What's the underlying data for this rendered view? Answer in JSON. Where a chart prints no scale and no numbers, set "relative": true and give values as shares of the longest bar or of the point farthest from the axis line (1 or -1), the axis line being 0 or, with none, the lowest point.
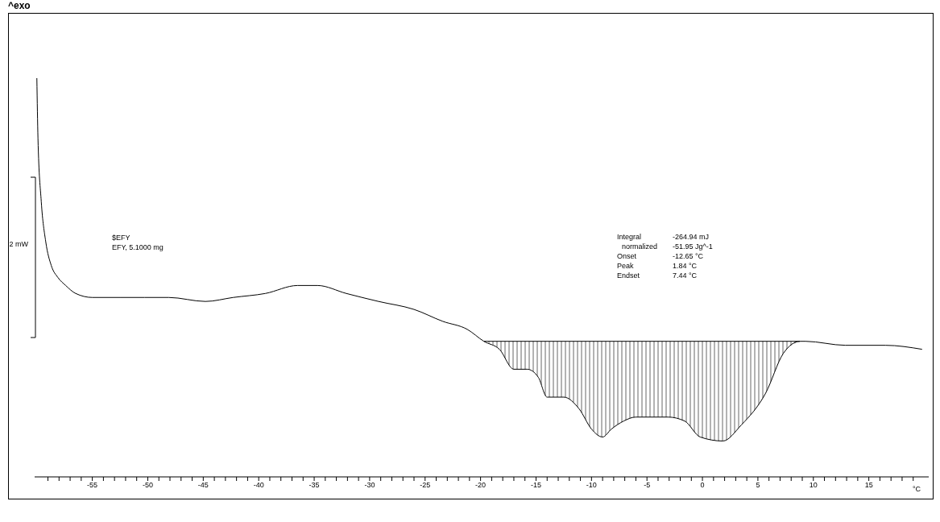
{
  "chart_data": {
    "type": "line",
    "relative": true,
    "xlabel": "°C",
    "ylabel": "2 mW",
    "xlim": [
      -60.2,
      20.4
    ],
    "xticks": [
      {
        "value": -59,
        "label": null
      },
      {
        "value": -58,
        "label": null
      },
      {
        "value": -57,
        "label": null
      },
      {
        "value": -56,
        "label": null
      },
      -55,
      {
        "value": -54,
        "label": null
      },
      {
        "value": -53,
        "label": null
      },
      {
        "value": -52,
        "label": null
      },
      {
        "value": -51,
        "label": null
      },
      -50,
      {
        "value": -49,
        "label": null
      },
      {
        "value": -48,
        "label": null
      },
      {
        "value": -47,
        "label": null
      },
      {
        "value": -46,
        "label": null
      },
      -45,
      {
        "value": -44,
        "label": null
      },
      {
        "value": -43,
        "label": null
      },
      {
        "value": -42,
        "label": null
      },
      {
        "value": -41,
        "label": null
      },
      -40,
      {
        "value": -39,
        "label": null
      },
      {
        "value": -38,
        "label": null
      },
      {
        "value": -37,
        "label": null
      },
      {
        "value": -36,
        "label": null
      },
      -35,
      {
        "value": -34,
        "label": null
      },
      {
        "value": -33,
        "label": null
      },
      {
        "value": -32,
        "label": null
      },
      {
        "value": -31,
        "label": null
      },
      -30,
      {
        "value": -29,
        "label": null
      },
      {
        "value": -28,
        "label": null
      },
      {
        "value": -27,
        "label": null
      },
      {
        "value": -26,
        "label": null
      },
      -25,
      {
        "value": -24,
        "label": null
      },
      {
        "value": -23,
        "label": null
      },
      {
        "value": -22,
        "label": null
      },
      {
        "value": -21,
        "label": null
      },
      -20,
      {
        "value": -19,
        "label": null
      },
      {
        "value": -18,
        "label": null
      },
      {
        "value": -17,
        "label": null
      },
      {
        "value": -16,
        "label": null
      },
      -15,
      {
        "value": -14,
        "label": null
      },
      {
        "value": -13,
        "label": null
      },
      {
        "value": -12,
        "label": null
      },
      {
        "value": -11,
        "label": null
      },
      -10,
      {
        "value": -9,
        "label": null
      },
      {
        "value": -8,
        "label": null
      },
      {
        "value": -7,
        "label": null
      },
      {
        "value": -6,
        "label": null
      },
      -5,
      {
        "value": -4,
        "label": null
      },
      {
        "value": -3,
        "label": null
      },
      {
        "value": -2,
        "label": null
      },
      {
        "value": -1,
        "label": null
      },
      0,
      {
        "value": 1,
        "label": null
      },
      {
        "value": 2,
        "label": null
      },
      {
        "value": 3,
        "label": null
      },
      {
        "value": 4,
        "label": null
      },
      5,
      {
        "value": 6,
        "label": null
      },
      {
        "value": 7,
        "label": null
      },
      {
        "value": 8,
        "label": null
      },
      {
        "value": 9,
        "label": null
      },
      10,
      {
        "value": 11,
        "label": null
      },
      {
        "value": 12,
        "label": null
      },
      {
        "value": 13,
        "label": null
      },
      {
        "value": 14,
        "label": null
      },
      15,
      {
        "value": 16,
        "label": null
      },
      {
        "value": 17,
        "label": null
      },
      {
        "value": 18,
        "label": null
      },
      {
        "value": 19,
        "label": null
      }
    ],
    "x": [
      -60.0,
      -59.9,
      -59.6,
      -59.2,
      -58.7,
      -58.1,
      -57.4,
      -56.5,
      -55.0,
      -52.5,
      -50.3,
      -48.1,
      -44.8,
      -42.3,
      -39.4,
      -36.5,
      -34.7,
      -32.1,
      -29.2,
      -26.0,
      -23.4,
      -21.2,
      -19.7,
      -18.3,
      -17.0,
      -15.8,
      -14.8,
      -14.0,
      -12.5,
      -11.1,
      -10.0,
      -9.0,
      -8.2,
      -7.1,
      -6.0,
      -3.1,
      -1.6,
      -0.2,
      1.84,
      3.5,
      5.7,
      7.3,
      8.8,
      9.3,
      12.9,
      16.5,
      19.8
    ],
    "series": [
      {
        "color": "#000000",
        "values": [
          1.0,
          0.85,
          0.69,
          0.59,
          0.53,
          0.5,
          0.48,
          0.46,
          0.45,
          0.45,
          0.45,
          0.45,
          0.44,
          0.45,
          0.46,
          0.48,
          0.48,
          0.46,
          0.44,
          0.42,
          0.39,
          0.37,
          0.34,
          0.32,
          0.27,
          0.27,
          0.25,
          0.2,
          0.2,
          0.17,
          0.12,
          0.1,
          0.12,
          0.14,
          0.15,
          0.15,
          0.14,
          0.1,
          0.09,
          0.13,
          0.21,
          0.31,
          0.34,
          0.34,
          0.33,
          0.33,
          0.32
        ],
        "lower": [
          null,
          null,
          null,
          null,
          null,
          null,
          null,
          null,
          null,
          null,
          null,
          null,
          null,
          null,
          null,
          null,
          null,
          null,
          null,
          null,
          null,
          null,
          0.34,
          0.32,
          0.27,
          0.27,
          0.25,
          0.2,
          0.2,
          0.17,
          0.12,
          0.1,
          0.12,
          0.14,
          0.15,
          0.15,
          0.14,
          0.1,
          0.09,
          0.13,
          0.21,
          0.31,
          0.34,
          null,
          null,
          null,
          null
        ],
        "upper": [
          null,
          null,
          null,
          null,
          null,
          null,
          null,
          null,
          null,
          null,
          null,
          null,
          null,
          null,
          null,
          null,
          null,
          null,
          null,
          null,
          null,
          null,
          0.34,
          0.34,
          0.34,
          0.34,
          0.34,
          0.34,
          0.34,
          0.34,
          0.34,
          0.34,
          0.34,
          0.34,
          0.34,
          0.34,
          0.34,
          0.34,
          0.34,
          0.34,
          0.34,
          0.34,
          0.34,
          null,
          null,
          null,
          null
        ]
      },
      {
        "type": "line",
        "color": "#000000",
        "x": [
          -19.7,
          8.8
        ],
        "values": [
          0.34,
          0.34
        ]
      }
    ],
    "annotations": [
      "^exo",
      "$EFY",
      "EFY, 5.1000 mg",
      "Integral",
      "-264.94 mJ",
      "normalized",
      "-51.95 Jg^-1",
      "Onset",
      "-12.65 °C",
      "Peak",
      "1.84 °C",
      "Endset",
      "7.44 °C"
    ]
  }
}
